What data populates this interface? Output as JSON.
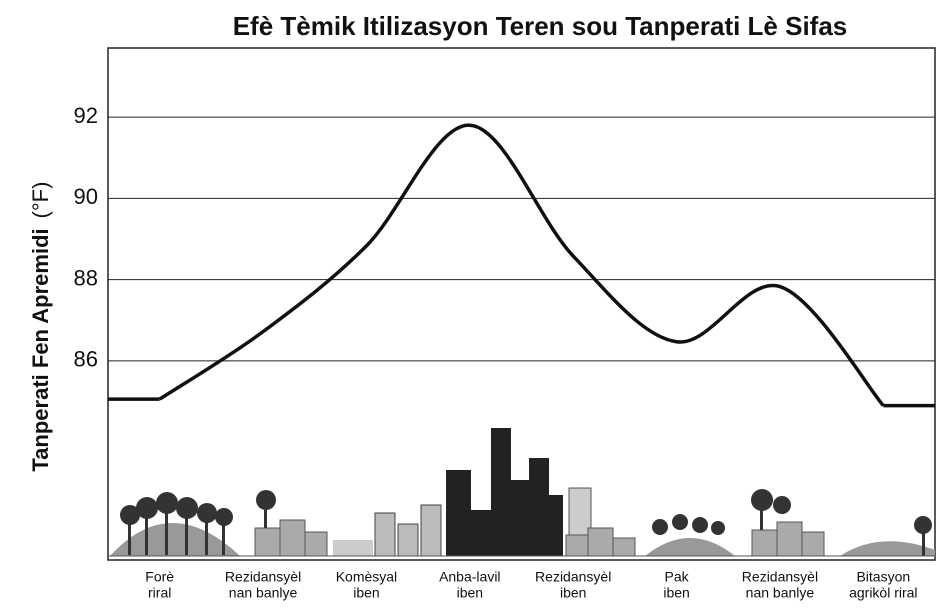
{
  "chart_data": {
    "type": "line",
    "title": "Efè Tèmik Itilizasyon Teren sou Tanperati Lè Sifas",
    "y_label": "Tanperati Fen Apremidi",
    "y_label_unit": "(°F)",
    "categories": [
      [
        "Forè",
        "riral"
      ],
      [
        "Rezidansyèl",
        "nan banlye"
      ],
      [
        "Komèsyal",
        "iben"
      ],
      [
        "Anba-lavil",
        "iben"
      ],
      [
        "Rezidansyèl",
        "iben"
      ],
      [
        "Pak",
        "iben"
      ],
      [
        "Rezidansyèl",
        "nan banlye"
      ],
      [
        "Bitasyon",
        "agrikòl riral"
      ]
    ],
    "values": [
      85.06,
      86.72,
      88.83,
      91.8,
      88.58,
      86.47,
      87.83,
      84.9
    ],
    "color": "#111111",
    "ylim": [
      81.1,
      93.7
    ],
    "yticks": [
      86,
      88,
      90,
      92
    ],
    "grid": true
  }
}
